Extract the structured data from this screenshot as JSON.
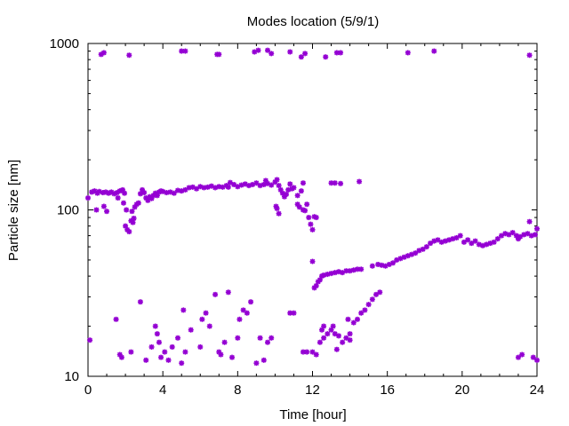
{
  "chart_data": {
    "type": "scatter",
    "title": "Modes location (5/9/1)",
    "xlabel": "Time [hour]",
    "ylabel": "Particle size [nm]",
    "xlim": [
      0,
      24
    ],
    "ylim": [
      10,
      1000
    ],
    "yscale": "log",
    "grid": false,
    "marker_color": "#9400d3",
    "x_ticks": [
      0,
      4,
      8,
      12,
      16,
      20,
      24
    ],
    "x_tick_labels": [
      "0",
      "4",
      "8",
      "12",
      "16",
      "20",
      "24"
    ],
    "y_ticks": [
      10,
      100,
      1000
    ],
    "y_tick_labels": [
      "10",
      "100",
      "1000"
    ],
    "series": [
      {
        "points": [
          [
            0.7,
            860
          ],
          [
            0.85,
            880
          ],
          [
            2.2,
            850
          ],
          [
            5.0,
            900
          ],
          [
            5.2,
            900
          ],
          [
            6.9,
            860
          ],
          [
            7.0,
            860
          ],
          [
            8.9,
            890
          ],
          [
            9.1,
            910
          ],
          [
            9.6,
            910
          ],
          [
            9.8,
            870
          ],
          [
            10.8,
            890
          ],
          [
            11.4,
            830
          ],
          [
            11.6,
            870
          ],
          [
            12.7,
            830
          ],
          [
            13.3,
            880
          ],
          [
            13.5,
            880
          ],
          [
            17.1,
            880
          ],
          [
            18.5,
            900
          ],
          [
            23.6,
            850
          ],
          [
            0.0,
            118
          ],
          [
            0.2,
            128
          ],
          [
            0.35,
            130
          ],
          [
            0.5,
            126
          ],
          [
            0.6,
            129
          ],
          [
            0.8,
            127
          ],
          [
            0.95,
            128
          ],
          [
            1.1,
            126
          ],
          [
            1.25,
            128
          ],
          [
            1.4,
            125
          ],
          [
            1.55,
            127
          ],
          [
            1.7,
            130
          ],
          [
            1.85,
            132
          ],
          [
            1.95,
            126
          ],
          [
            0.45,
            100
          ],
          [
            0.85,
            105
          ],
          [
            1.0,
            98
          ],
          [
            1.6,
            118
          ],
          [
            1.9,
            110
          ],
          [
            2.05,
            100
          ],
          [
            2.0,
            80
          ],
          [
            2.1,
            76
          ],
          [
            2.2,
            74
          ],
          [
            2.3,
            86
          ],
          [
            2.4,
            84
          ],
          [
            2.45,
            89
          ],
          [
            2.35,
            98
          ],
          [
            2.5,
            104
          ],
          [
            2.6,
            108
          ],
          [
            2.7,
            110
          ],
          [
            2.8,
            125
          ],
          [
            2.9,
            132
          ],
          [
            3.0,
            127
          ],
          [
            3.1,
            118
          ],
          [
            3.2,
            114
          ],
          [
            3.3,
            120
          ],
          [
            3.4,
            117
          ],
          [
            3.5,
            122
          ],
          [
            3.6,
            126
          ],
          [
            3.7,
            122
          ],
          [
            3.8,
            128
          ],
          [
            3.9,
            130
          ],
          [
            4.0,
            129
          ],
          [
            4.2,
            127
          ],
          [
            4.4,
            128
          ],
          [
            4.6,
            126
          ],
          [
            4.8,
            131
          ],
          [
            5.0,
            130
          ],
          [
            5.2,
            132
          ],
          [
            5.4,
            136
          ],
          [
            5.6,
            137
          ],
          [
            5.8,
            134
          ],
          [
            6.0,
            138
          ],
          [
            6.2,
            136
          ],
          [
            6.4,
            137
          ],
          [
            6.6,
            139
          ],
          [
            6.8,
            136
          ],
          [
            7.0,
            138
          ],
          [
            7.2,
            137
          ],
          [
            7.4,
            140
          ],
          [
            7.5,
            137
          ],
          [
            7.6,
            146
          ],
          [
            7.8,
            142
          ],
          [
            8.0,
            138
          ],
          [
            8.2,
            141
          ],
          [
            8.4,
            143
          ],
          [
            8.6,
            140
          ],
          [
            8.8,
            142
          ],
          [
            9.0,
            145
          ],
          [
            9.2,
            140
          ],
          [
            9.4,
            142
          ],
          [
            9.5,
            150
          ],
          [
            9.6,
            144
          ],
          [
            9.8,
            141
          ],
          [
            10.0,
            147
          ],
          [
            10.1,
            152
          ],
          [
            10.2,
            140
          ],
          [
            10.3,
            132
          ],
          [
            10.4,
            126
          ],
          [
            10.5,
            120
          ],
          [
            10.6,
            124
          ],
          [
            10.7,
            132
          ],
          [
            10.8,
            143
          ],
          [
            10.9,
            134
          ],
          [
            11.0,
            136
          ],
          [
            10.05,
            105
          ],
          [
            10.1,
            102
          ],
          [
            10.2,
            95
          ],
          [
            11.2,
            122
          ],
          [
            11.4,
            130
          ],
          [
            11.5,
            145
          ],
          [
            11.2,
            108
          ],
          [
            11.3,
            104
          ],
          [
            11.5,
            100
          ],
          [
            11.6,
            99
          ],
          [
            11.7,
            108
          ],
          [
            11.8,
            90
          ],
          [
            11.9,
            82
          ],
          [
            12.0,
            76
          ],
          [
            12.1,
            91
          ],
          [
            12.2,
            90
          ],
          [
            13.0,
            145
          ],
          [
            13.2,
            145
          ],
          [
            13.5,
            144
          ],
          [
            14.5,
            148
          ],
          [
            12.0,
            49
          ],
          [
            12.1,
            34
          ],
          [
            12.2,
            35
          ],
          [
            12.3,
            37
          ],
          [
            12.4,
            38
          ],
          [
            12.5,
            40
          ],
          [
            12.6,
            40.5
          ],
          [
            12.8,
            41
          ],
          [
            13.0,
            41.5
          ],
          [
            13.2,
            42
          ],
          [
            13.4,
            42.5
          ],
          [
            13.6,
            42
          ],
          [
            13.8,
            43
          ],
          [
            14.0,
            43
          ],
          [
            14.2,
            43.5
          ],
          [
            14.4,
            44
          ],
          [
            14.6,
            44
          ],
          [
            15.2,
            46
          ],
          [
            15.5,
            47
          ],
          [
            15.7,
            46.5
          ],
          [
            15.9,
            46
          ],
          [
            16.1,
            47
          ],
          [
            16.3,
            48
          ],
          [
            16.5,
            50
          ],
          [
            16.7,
            51
          ],
          [
            16.9,
            52
          ],
          [
            17.1,
            53
          ],
          [
            17.3,
            54
          ],
          [
            17.5,
            55
          ],
          [
            17.7,
            57
          ],
          [
            17.9,
            58
          ],
          [
            18.1,
            60
          ],
          [
            18.3,
            63
          ],
          [
            18.5,
            65
          ],
          [
            18.7,
            66
          ],
          [
            18.9,
            64
          ],
          [
            19.1,
            65
          ],
          [
            19.3,
            66
          ],
          [
            19.5,
            67
          ],
          [
            19.7,
            68
          ],
          [
            19.9,
            70
          ],
          [
            20.1,
            64
          ],
          [
            20.3,
            66
          ],
          [
            20.5,
            63
          ],
          [
            20.7,
            65
          ],
          [
            20.9,
            62
          ],
          [
            21.1,
            61
          ],
          [
            21.3,
            62
          ],
          [
            21.5,
            63
          ],
          [
            21.7,
            64
          ],
          [
            21.9,
            67
          ],
          [
            22.1,
            70
          ],
          [
            22.3,
            72
          ],
          [
            22.5,
            71
          ],
          [
            22.7,
            73
          ],
          [
            22.9,
            70
          ],
          [
            23.1,
            69
          ],
          [
            23.3,
            71
          ],
          [
            23.5,
            72
          ],
          [
            23.7,
            70
          ],
          [
            23.9,
            71
          ],
          [
            23.0,
            67
          ],
          [
            23.6,
            85
          ],
          [
            24.0,
            77
          ],
          [
            12.5,
            19
          ],
          [
            12.6,
            20
          ],
          [
            12.8,
            18
          ],
          [
            13.0,
            19
          ],
          [
            13.2,
            18
          ],
          [
            13.4,
            17.5
          ],
          [
            13.6,
            16
          ],
          [
            13.8,
            17
          ],
          [
            14.0,
            18
          ],
          [
            13.9,
            22
          ],
          [
            14.2,
            21
          ],
          [
            14.4,
            22
          ],
          [
            14.6,
            24
          ],
          [
            14.8,
            25
          ],
          [
            15.0,
            27
          ],
          [
            15.2,
            29
          ],
          [
            15.4,
            31
          ],
          [
            15.6,
            32
          ],
          [
            13.3,
            14.5
          ],
          [
            14.0,
            16.5
          ],
          [
            12.0,
            14
          ],
          [
            12.2,
            13.5
          ],
          [
            12.4,
            16
          ],
          [
            12.6,
            17
          ],
          [
            13.1,
            20
          ],
          [
            0.1,
            16.5
          ],
          [
            1.5,
            22
          ],
          [
            1.7,
            13.5
          ],
          [
            1.8,
            13
          ],
          [
            2.3,
            14
          ],
          [
            2.8,
            28
          ],
          [
            3.1,
            12.5
          ],
          [
            3.4,
            15
          ],
          [
            3.6,
            20
          ],
          [
            3.8,
            16
          ],
          [
            3.9,
            13
          ],
          [
            4.1,
            14
          ],
          [
            4.3,
            12.5
          ],
          [
            4.5,
            15
          ],
          [
            4.8,
            17
          ],
          [
            5.0,
            12
          ],
          [
            5.2,
            14
          ],
          [
            5.5,
            19
          ],
          [
            6.0,
            15
          ],
          [
            6.3,
            24
          ],
          [
            6.5,
            20
          ],
          [
            6.8,
            31
          ],
          [
            7.0,
            14
          ],
          [
            7.3,
            16
          ],
          [
            7.5,
            32
          ],
          [
            7.7,
            13
          ],
          [
            8.0,
            17
          ],
          [
            8.3,
            25
          ],
          [
            8.5,
            24
          ],
          [
            8.7,
            28
          ],
          [
            9.0,
            12
          ],
          [
            9.2,
            17
          ],
          [
            9.6,
            16
          ],
          [
            9.8,
            17
          ],
          [
            10.8,
            24
          ],
          [
            11.0,
            24
          ],
          [
            11.5,
            14
          ],
          [
            11.7,
            14
          ],
          [
            3.7,
            18
          ],
          [
            5.1,
            25
          ],
          [
            6.1,
            22
          ],
          [
            7.1,
            13.5
          ],
          [
            8.1,
            22
          ],
          [
            9.4,
            12.5
          ],
          [
            23.0,
            13
          ],
          [
            23.2,
            13.5
          ],
          [
            23.8,
            13
          ],
          [
            24.0,
            12.5
          ]
        ]
      }
    ]
  }
}
